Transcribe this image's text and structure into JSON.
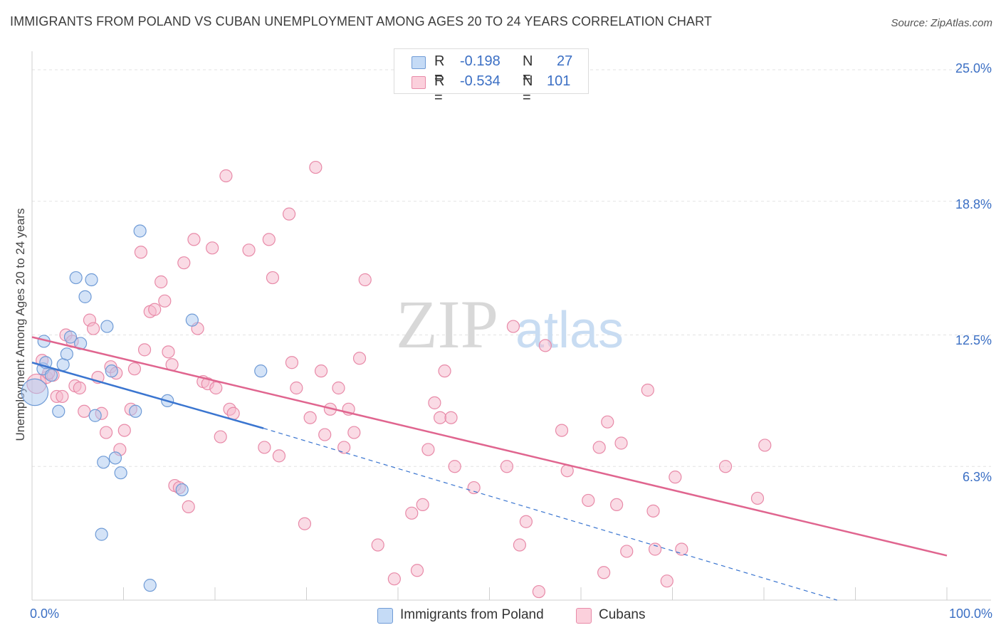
{
  "title": "IMMIGRANTS FROM POLAND VS CUBAN UNEMPLOYMENT AMONG AGES 20 TO 24 YEARS CORRELATION CHART",
  "source": "Source: ZipAtlas.com",
  "watermark": {
    "zip": "ZIP",
    "atlas": "atlas"
  },
  "legend_top": [
    {
      "r_label": "R =",
      "r_value": "-0.198",
      "n_label": "N =",
      "n_value": "27"
    },
    {
      "r_label": "R =",
      "r_value": "-0.534",
      "n_label": "N =",
      "n_value": "101"
    }
  ],
  "legend_bottom": [
    "Immigrants from Poland",
    "Cubans"
  ],
  "colors": {
    "poland_fill": "#a9c8f0",
    "poland_stroke": "#6f9bd6",
    "poland_line": "#3a75d0",
    "cuban_fill": "#f6b8cb",
    "cuban_stroke": "#e88aa8",
    "cuban_line": "#e0658f",
    "tick_text": "#3b6fc4",
    "grid": "#e3e3e3"
  },
  "chart_data": {
    "type": "scatter",
    "title": "IMMIGRANTS FROM POLAND VS CUBAN UNEMPLOYMENT AMONG AGES 20 TO 24 YEARS CORRELATION CHART",
    "xlabel": "",
    "ylabel": "Unemployment Among Ages 20 to 24 years",
    "xlim": [
      0,
      100
    ],
    "ylim": [
      0,
      26
    ],
    "x_tick_labels": [
      "0.0%",
      "100.0%"
    ],
    "y_ticks": [
      {
        "value": 6.3,
        "label": "6.3%"
      },
      {
        "value": 12.5,
        "label": "12.5%"
      },
      {
        "value": 18.8,
        "label": "18.8%"
      },
      {
        "value": 25.0,
        "label": "25.0%"
      }
    ],
    "grid": true,
    "legend_position": "top-center",
    "series": [
      {
        "name": "Immigrants from Poland",
        "r": -0.198,
        "n": 27,
        "points": [
          [
            0.3,
            9.8,
            2.2
          ],
          [
            1.2,
            10.9,
            1
          ],
          [
            1.3,
            12.2,
            1
          ],
          [
            1.5,
            11.2,
            1
          ],
          [
            2.1,
            10.6,
            1
          ],
          [
            2.9,
            8.9,
            1
          ],
          [
            3.4,
            11.1,
            1
          ],
          [
            3.8,
            11.6,
            1
          ],
          [
            4.2,
            12.4,
            1
          ],
          [
            5.3,
            12.1,
            1
          ],
          [
            4.8,
            15.2,
            1
          ],
          [
            5.8,
            14.3,
            1
          ],
          [
            6.5,
            15.1,
            1
          ],
          [
            6.9,
            8.7,
            1
          ],
          [
            7.8,
            6.5,
            1
          ],
          [
            8.2,
            12.9,
            1
          ],
          [
            8.7,
            10.8,
            1
          ],
          [
            9.1,
            6.7,
            1
          ],
          [
            9.7,
            6.0,
            1
          ],
          [
            11.3,
            8.9,
            1
          ],
          [
            11.8,
            17.4,
            1
          ],
          [
            12.9,
            0.7,
            1
          ],
          [
            14.8,
            9.4,
            1
          ],
          [
            16.4,
            5.2,
            1
          ],
          [
            17.5,
            13.2,
            1
          ],
          [
            25.0,
            10.8,
            1
          ],
          [
            7.6,
            3.1,
            1
          ]
        ],
        "trend": {
          "x": [
            0,
            25.3
          ],
          "y": [
            11.2,
            8.1
          ],
          "dashed_extension_to": [
            88,
            0
          ]
        }
      },
      {
        "name": "Cubans",
        "r": -0.534,
        "n": 101,
        "points": [
          [
            0.5,
            10.2,
            1.6
          ],
          [
            1.1,
            11.3,
            1
          ],
          [
            1.6,
            10.5,
            1
          ],
          [
            2.3,
            10.6,
            1
          ],
          [
            2.7,
            9.6,
            1
          ],
          [
            3.3,
            9.6,
            1
          ],
          [
            3.7,
            12.5,
            1
          ],
          [
            4.4,
            12.2,
            1
          ],
          [
            4.7,
            10.1,
            1
          ],
          [
            5.2,
            10.0,
            1
          ],
          [
            5.7,
            8.9,
            1
          ],
          [
            6.3,
            13.2,
            1
          ],
          [
            6.7,
            12.8,
            1
          ],
          [
            7.2,
            10.5,
            1
          ],
          [
            7.6,
            8.8,
            1
          ],
          [
            8.1,
            7.9,
            1
          ],
          [
            8.6,
            11.0,
            1
          ],
          [
            9.2,
            10.7,
            1
          ],
          [
            9.6,
            7.1,
            1
          ],
          [
            10.1,
            8.0,
            1
          ],
          [
            10.8,
            9.0,
            1
          ],
          [
            11.2,
            10.9,
            1
          ],
          [
            11.9,
            16.4,
            1
          ],
          [
            12.3,
            11.8,
            1
          ],
          [
            12.9,
            13.6,
            1
          ],
          [
            13.4,
            13.7,
            1
          ],
          [
            14.1,
            15.0,
            1
          ],
          [
            14.5,
            14.1,
            1
          ],
          [
            14.9,
            11.7,
            1
          ],
          [
            15.3,
            11.1,
            1
          ],
          [
            15.6,
            5.4,
            1
          ],
          [
            16.1,
            5.3,
            1
          ],
          [
            16.6,
            15.9,
            1
          ],
          [
            17.1,
            4.4,
            1
          ],
          [
            17.7,
            17.0,
            1
          ],
          [
            18.1,
            12.8,
            1
          ],
          [
            18.7,
            10.3,
            1
          ],
          [
            19.2,
            10.2,
            1
          ],
          [
            19.7,
            16.6,
            1
          ],
          [
            20.1,
            10.0,
            1
          ],
          [
            20.6,
            7.7,
            1
          ],
          [
            21.2,
            20.0,
            1
          ],
          [
            21.6,
            9.0,
            1
          ],
          [
            22.0,
            8.8,
            1
          ],
          [
            23.7,
            16.5,
            1
          ],
          [
            25.4,
            7.2,
            1
          ],
          [
            25.9,
            17.0,
            1
          ],
          [
            26.3,
            15.2,
            1
          ],
          [
            27.0,
            6.8,
            1
          ],
          [
            28.1,
            18.2,
            1
          ],
          [
            28.4,
            11.2,
            1
          ],
          [
            28.9,
            10.0,
            1
          ],
          [
            29.8,
            3.6,
            1
          ],
          [
            30.4,
            8.6,
            1
          ],
          [
            31.0,
            20.4,
            1
          ],
          [
            31.6,
            10.8,
            1
          ],
          [
            32.0,
            7.8,
            1
          ],
          [
            32.6,
            9.0,
            1
          ],
          [
            33.5,
            10.0,
            1
          ],
          [
            34.1,
            7.2,
            1
          ],
          [
            34.6,
            9.0,
            1
          ],
          [
            35.2,
            7.9,
            1
          ],
          [
            35.8,
            11.4,
            1
          ],
          [
            36.4,
            15.1,
            1
          ],
          [
            37.8,
            2.6,
            1
          ],
          [
            39.6,
            1.0,
            1
          ],
          [
            41.5,
            4.1,
            1
          ],
          [
            42.1,
            1.4,
            1
          ],
          [
            42.7,
            4.5,
            1
          ],
          [
            43.3,
            7.1,
            1
          ],
          [
            44.0,
            9.3,
            1
          ],
          [
            44.6,
            8.6,
            1
          ],
          [
            45.1,
            10.8,
            1
          ],
          [
            45.8,
            8.6,
            1
          ],
          [
            46.2,
            6.3,
            1
          ],
          [
            48.3,
            5.3,
            1
          ],
          [
            51.9,
            6.3,
            1
          ],
          [
            52.6,
            12.9,
            1
          ],
          [
            53.3,
            2.6,
            1
          ],
          [
            54.0,
            3.7,
            1
          ],
          [
            55.4,
            0.4,
            1
          ],
          [
            56.1,
            12.0,
            1
          ],
          [
            57.9,
            8.0,
            1
          ],
          [
            58.5,
            6.1,
            1
          ],
          [
            60.8,
            4.7,
            1
          ],
          [
            62.0,
            7.2,
            1
          ],
          [
            62.5,
            1.3,
            1
          ],
          [
            62.9,
            8.4,
            1
          ],
          [
            63.9,
            4.5,
            1
          ],
          [
            64.4,
            7.4,
            1
          ],
          [
            65.0,
            2.3,
            1
          ],
          [
            67.3,
            9.9,
            1
          ],
          [
            67.9,
            4.2,
            1
          ],
          [
            68.1,
            2.4,
            1
          ],
          [
            69.4,
            0.9,
            1
          ],
          [
            70.3,
            5.8,
            1
          ],
          [
            71.0,
            2.4,
            1
          ],
          [
            75.8,
            6.3,
            1
          ],
          [
            79.3,
            4.8,
            1
          ],
          [
            80.1,
            7.3,
            1
          ],
          [
            1.8,
            10.7,
            1
          ]
        ],
        "trend": {
          "x": [
            0,
            100
          ],
          "y": [
            12.4,
            2.1
          ]
        }
      }
    ]
  }
}
